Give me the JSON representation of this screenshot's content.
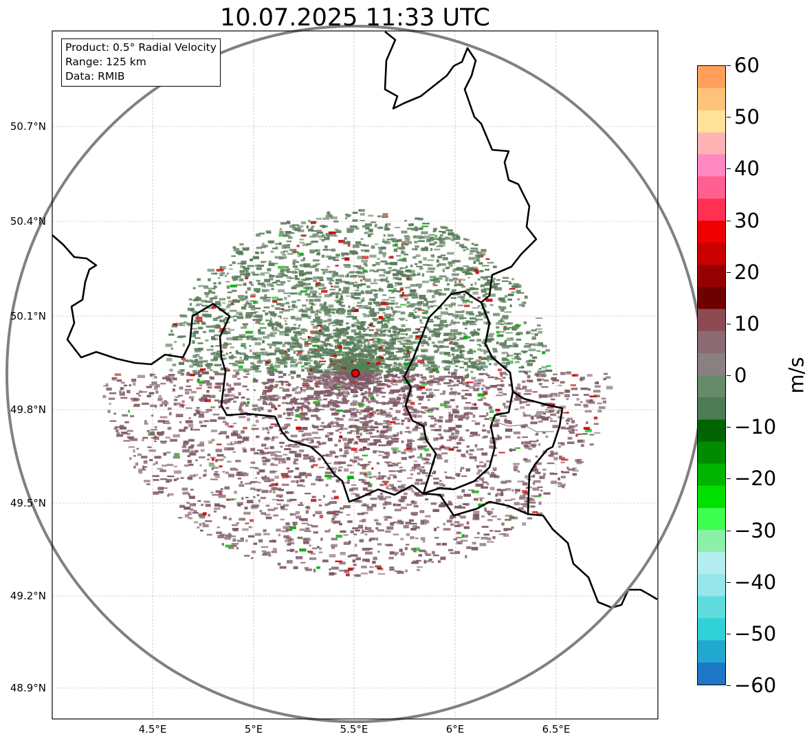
{
  "title": "10.07.2025 11:33 UTC",
  "info": {
    "product": "Product: 0.5° Radial Velocity",
    "range": "Range: 125 km",
    "data": "Data: RMIB"
  },
  "lat_labels": [
    "50.7°N",
    "50.4°N",
    "50.1°N",
    "49.8°N",
    "49.5°N",
    "49.2°N",
    "48.9°N"
  ],
  "lon_labels": [
    "4.5°E",
    "5°E",
    "5.5°E",
    "6°E",
    "6.5°E"
  ],
  "colorbar": {
    "unit": "m/s",
    "ticks": [
      "60",
      "50",
      "40",
      "30",
      "20",
      "10",
      "0",
      "−10",
      "−20",
      "−30",
      "−40",
      "−50",
      "−60"
    ],
    "range": [
      -60,
      60
    ],
    "colors_top_to_bottom": [
      "#ff9f5a",
      "#ffc27a",
      "#ffe39a",
      "#ffb4b4",
      "#ff88c0",
      "#ff6090",
      "#ff3050",
      "#f00000",
      "#c80000",
      "#960000",
      "#6e0000",
      "#8c4b50",
      "#8c6a72",
      "#8a8080",
      "#668a6a",
      "#4e7a56",
      "#006400",
      "#008c00",
      "#00b400",
      "#00e000",
      "#3cff50",
      "#8cf0a8",
      "#b4ecf0",
      "#96e6ea",
      "#60dcde",
      "#30d2d8",
      "#20a8d0",
      "#1e78c8"
    ]
  },
  "radar_site": {
    "lon": 5.505,
    "lat": 49.914
  },
  "colors": {
    "receding": "#7e5b65",
    "approaching": "#5c7d5c",
    "border": "#000000",
    "range_ring": "#808080",
    "site_marker": "#e8000b"
  }
}
